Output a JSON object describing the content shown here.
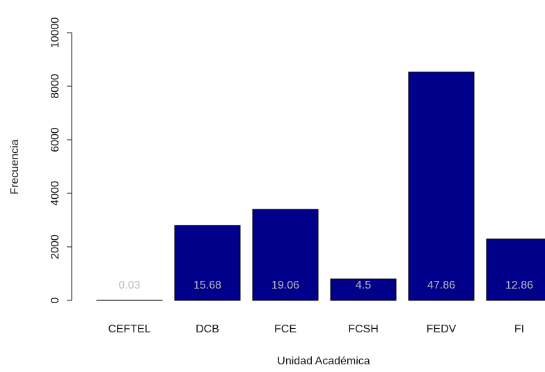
{
  "chart_data": {
    "type": "bar",
    "xlabel": "Unidad Académica",
    "ylabel": "Frecuencia",
    "categories": [
      "CEFTEL",
      "DCB",
      "FCE",
      "FCSH",
      "FEDV",
      "FI"
    ],
    "values": [
      5,
      2795,
      3397,
      802,
      8530,
      2292
    ],
    "percent_labels": [
      "0.03",
      "15.68",
      "19.06",
      "4.5",
      "47.86",
      "12.86"
    ],
    "color": "#00008b",
    "ylim": [
      0,
      10000
    ],
    "yticks": [
      0,
      2000,
      4000,
      6000,
      8000,
      10000
    ],
    "grid": false
  }
}
